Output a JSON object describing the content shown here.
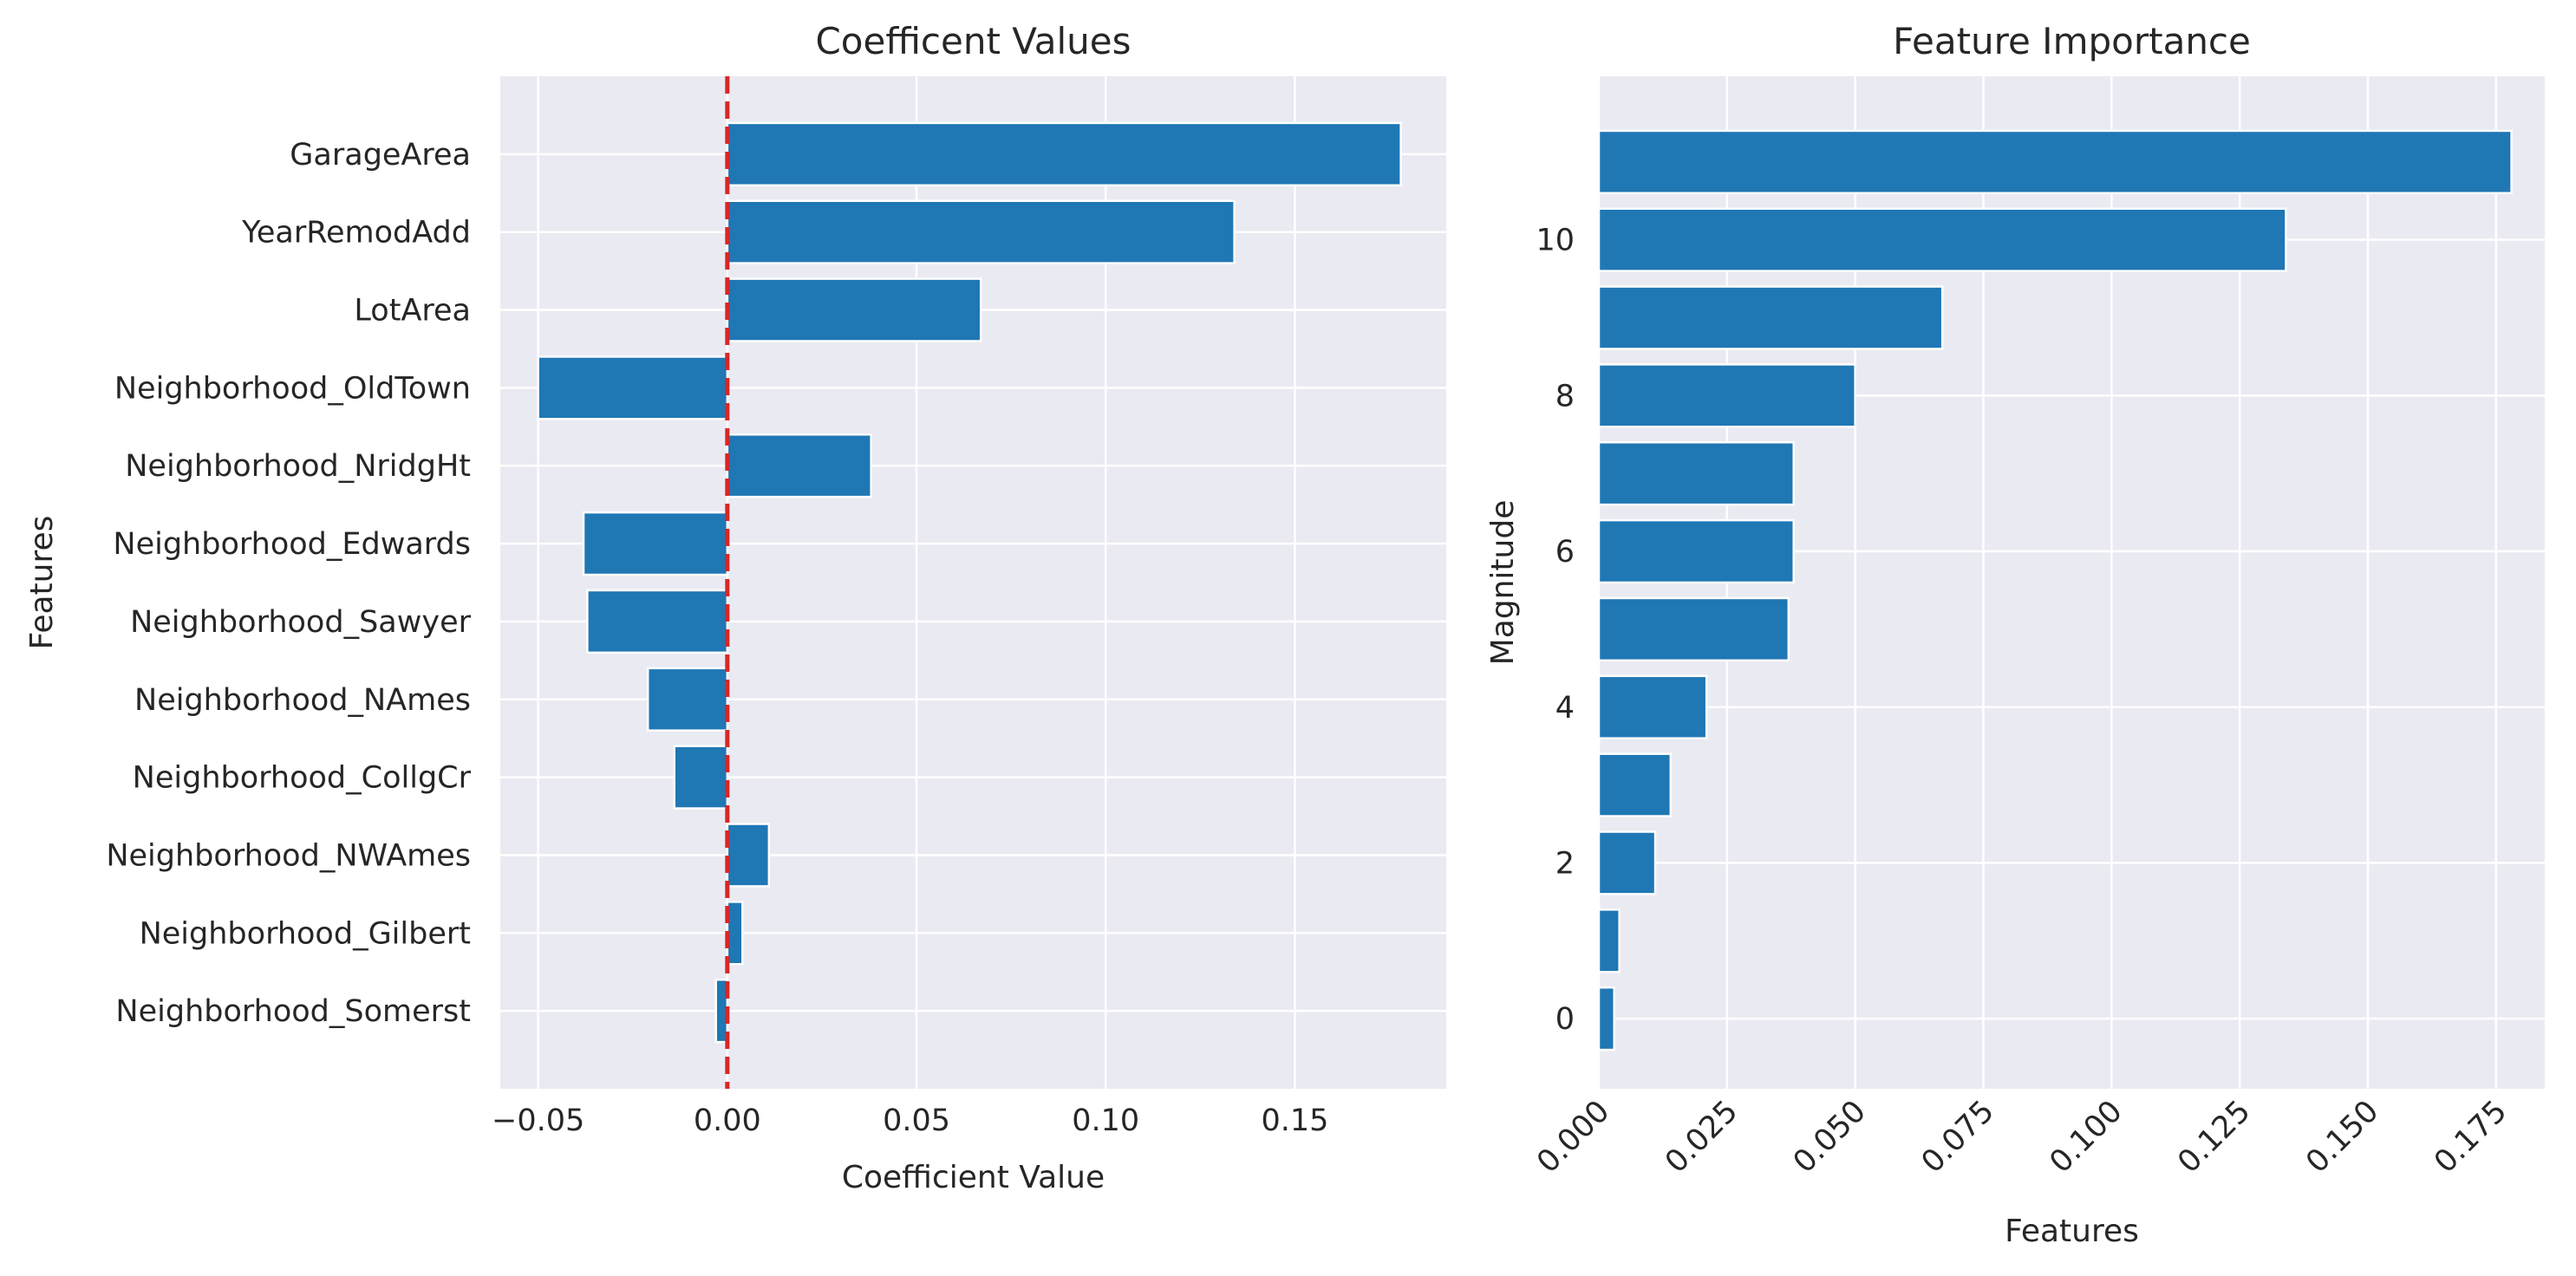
{
  "chart_data": [
    {
      "type": "bar",
      "orientation": "horizontal",
      "title": "Coefficent Values",
      "xlabel": "Coefficient Value",
      "ylabel": "Features",
      "xlim": [
        -0.06,
        0.19
      ],
      "xticks": [
        -0.05,
        0.0,
        0.05,
        0.1,
        0.15
      ],
      "xtick_labels": [
        "−0.05",
        "0.00",
        "0.05",
        "0.10",
        "0.15"
      ],
      "categories": [
        "GarageArea",
        "YearRemodAdd",
        "LotArea",
        "Neighborhood_OldTown",
        "Neighborhood_NridgHt",
        "Neighborhood_Edwards",
        "Neighborhood_Sawyer",
        "Neighborhood_NAmes",
        "Neighborhood_CollgCr",
        "Neighborhood_NWAmes",
        "Neighborhood_Gilbert",
        "Neighborhood_Somerst"
      ],
      "values": [
        0.178,
        0.134,
        0.067,
        -0.05,
        0.038,
        -0.038,
        -0.037,
        -0.021,
        -0.014,
        0.011,
        0.004,
        -0.003
      ],
      "reference_line": {
        "x": 0.0,
        "color": "#d62728",
        "style": "dashed"
      },
      "grid": true,
      "bar_color": "#1f77b4"
    },
    {
      "type": "bar",
      "orientation": "horizontal",
      "title": "Feature Importance",
      "xlabel": "Features",
      "ylabel": "Magnitude",
      "xlim": [
        0,
        0.1845
      ],
      "xticks": [
        0.0,
        0.025,
        0.05,
        0.075,
        0.1,
        0.125,
        0.15,
        0.175
      ],
      "xtick_labels": [
        "0.000",
        "0.025",
        "0.050",
        "0.075",
        "0.100",
        "0.125",
        "0.150",
        "0.175"
      ],
      "ylim": [
        -0.9,
        12.1
      ],
      "yticks": [
        0,
        2,
        4,
        6,
        8,
        10
      ],
      "y": [
        0,
        1,
        2,
        3,
        4,
        5,
        6,
        7,
        8,
        9,
        10,
        11
      ],
      "values": [
        0.003,
        0.004,
        0.011,
        0.014,
        0.021,
        0.037,
        0.038,
        0.038,
        0.05,
        0.067,
        0.134,
        0.178
      ],
      "grid": true,
      "bar_color": "#1f77b4"
    }
  ]
}
